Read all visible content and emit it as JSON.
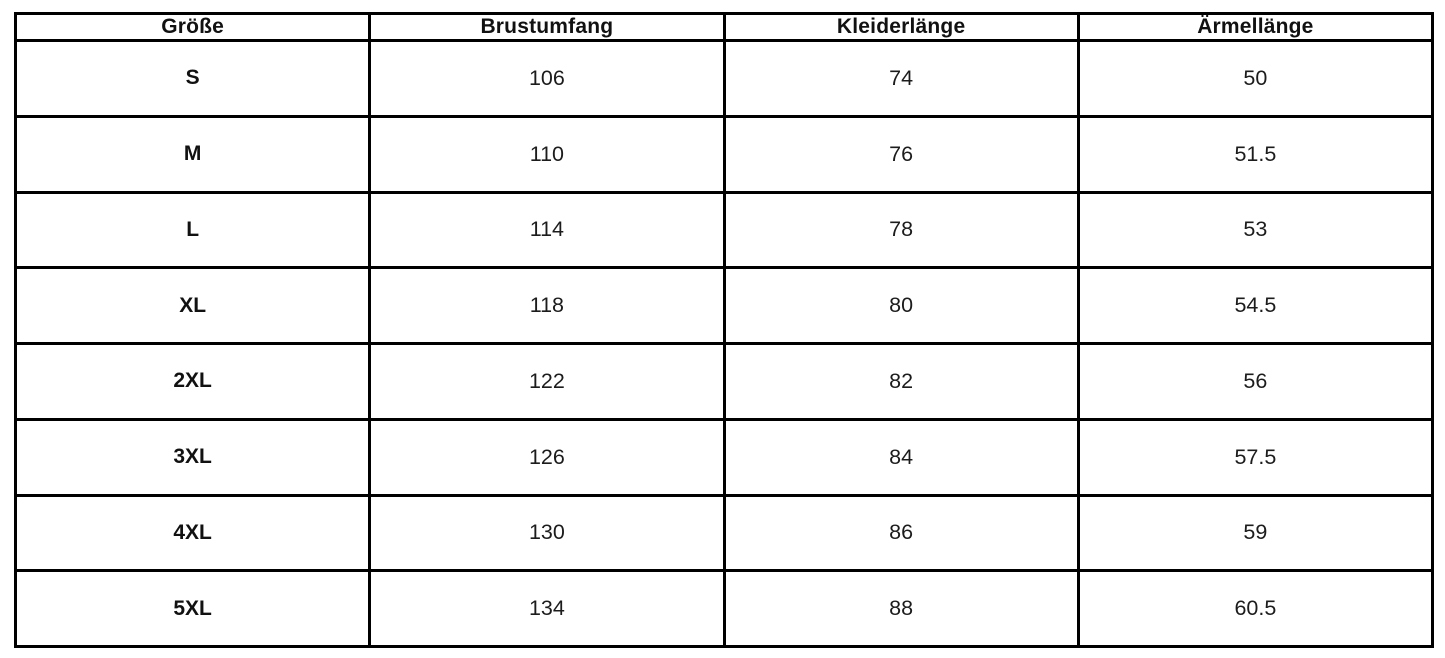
{
  "colors": {
    "border": "#000000",
    "background": "#ffffff",
    "header_text": "#111111",
    "body_text": "#1c1c1c"
  },
  "table": {
    "headers": [
      "Größe",
      "Brustumfang",
      "Kleiderlänge",
      "Ärmellänge"
    ],
    "rows": [
      {
        "size": "S",
        "brustumfang": "106",
        "kleiderlaenge": "74",
        "aermellaenge": "50"
      },
      {
        "size": "M",
        "brustumfang": "110",
        "kleiderlaenge": "76",
        "aermellaenge": "51.5"
      },
      {
        "size": "L",
        "brustumfang": "114",
        "kleiderlaenge": "78",
        "aermellaenge": "53"
      },
      {
        "size": "XL",
        "brustumfang": "118",
        "kleiderlaenge": "80",
        "aermellaenge": "54.5"
      },
      {
        "size": "2XL",
        "brustumfang": "122",
        "kleiderlaenge": "82",
        "aermellaenge": "56"
      },
      {
        "size": "3XL",
        "brustumfang": "126",
        "kleiderlaenge": "84",
        "aermellaenge": "57.5"
      },
      {
        "size": "4XL",
        "brustumfang": "130",
        "kleiderlaenge": "86",
        "aermellaenge": "59"
      },
      {
        "size": "5XL",
        "brustumfang": "134",
        "kleiderlaenge": "88",
        "aermellaenge": "60.5"
      }
    ]
  }
}
